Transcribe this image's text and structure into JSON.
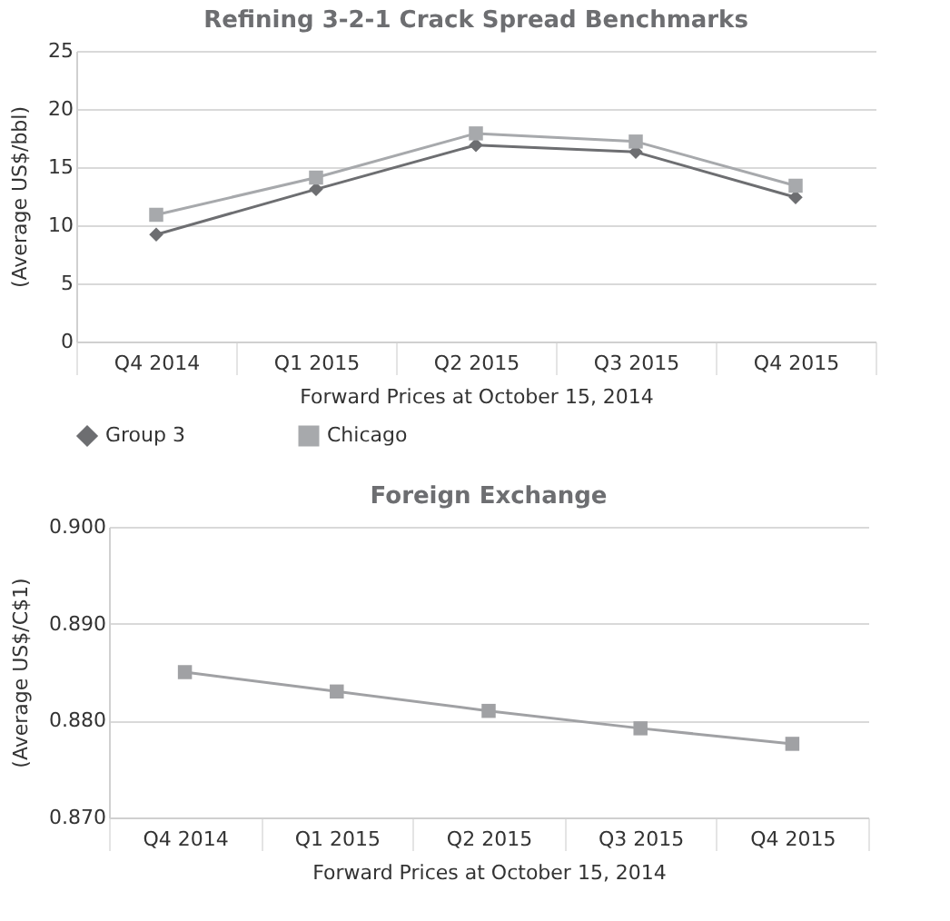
{
  "chart_data": [
    {
      "type": "line",
      "title": "Refining 3-2-1 Crack Spread Benchmarks",
      "xlabel": "Forward Prices at October 15, 2014",
      "ylabel": "(Average US$/bbl)",
      "categories": [
        "Q4 2014",
        "Q1 2015",
        "Q2 2015",
        "Q3 2015",
        "Q4 2015"
      ],
      "series": [
        {
          "name": "Group 3",
          "color": "#6d6e71",
          "marker": "diamond",
          "values": [
            9.2,
            13.1,
            16.9,
            16.3,
            12.4
          ]
        },
        {
          "name": "Chicago",
          "color": "#a7a9ac",
          "marker": "square",
          "values": [
            10.9,
            14.1,
            17.9,
            17.2,
            13.4
          ]
        }
      ],
      "ylim": [
        0,
        25
      ],
      "yticks": [
        0,
        5,
        10,
        15,
        20,
        25
      ],
      "grid": "y",
      "legend": "bottom"
    },
    {
      "type": "line",
      "title": "Foreign Exchange",
      "xlabel": "Forward Prices at October 15, 2014",
      "ylabel": "(Average US$/C$1)",
      "categories": [
        "Q4 2014",
        "Q1 2015",
        "Q2 2015",
        "Q3 2015",
        "Q4 2015"
      ],
      "series": [
        {
          "color": "#a0a1a4",
          "marker": "square",
          "values": [
            0.885,
            0.883,
            0.881,
            0.8792,
            0.8776
          ]
        }
      ],
      "ylim": [
        0.87,
        0.9
      ],
      "yticks": [
        {
          "value": 0.87,
          "label": "0.870"
        },
        {
          "value": 0.88,
          "label": "0.880"
        },
        {
          "value": 0.89,
          "label": "0.890"
        },
        {
          "value": 0.9,
          "label": "0.900"
        }
      ],
      "grid": "y"
    }
  ]
}
